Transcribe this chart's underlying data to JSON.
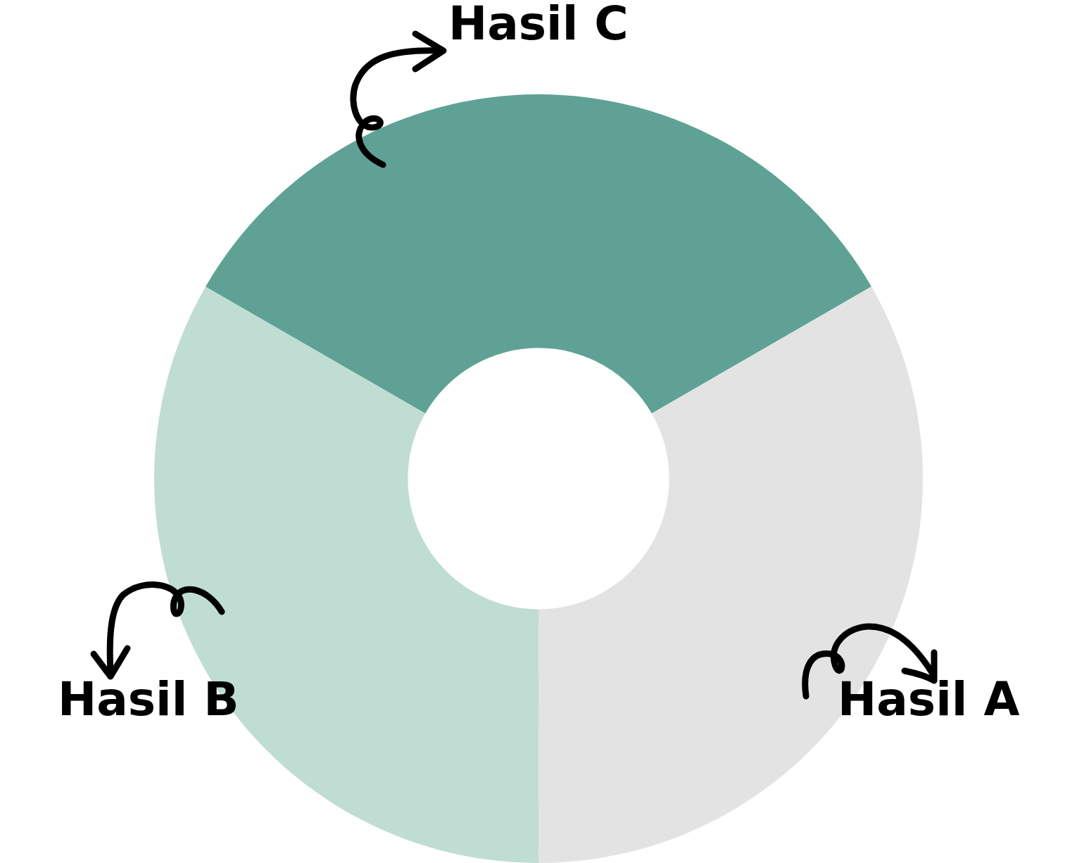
{
  "chart_data": {
    "type": "donut",
    "categories": [
      "Hasil A",
      "Hasil B",
      "Hasil C"
    ],
    "values": [
      33.33,
      33.33,
      33.34
    ],
    "colors": [
      "#e3e3e3",
      "#c0ddd4",
      "#5fa295"
    ],
    "legend": false
  }
}
